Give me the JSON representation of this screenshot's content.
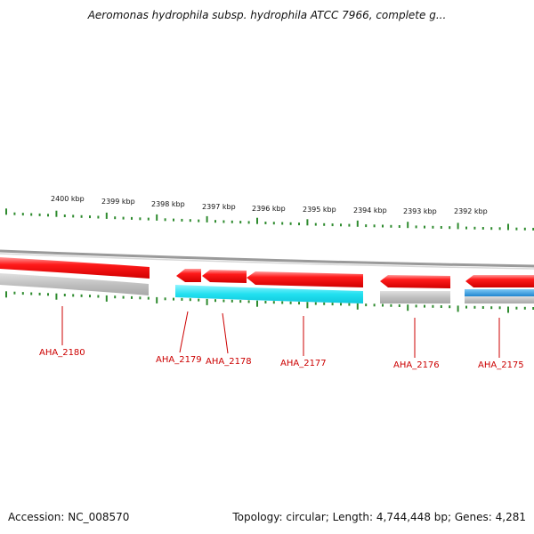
{
  "title": "Aeromonas hydrophila subsp. hydrophila ATCC 7966, complete g...",
  "footer": {
    "accession": "Accession: NC_008570",
    "topology": "Topology: circular; Length: 4,744,448 bp; Genes: 4,281"
  },
  "scale_labels": [
    "2400 kbp",
    "2399 kbp",
    "2398 kbp",
    "2397 kbp",
    "2396 kbp",
    "2395 kbp",
    "2394 kbp",
    "2393 kbp",
    "2392 kbp"
  ],
  "genes": [
    "AHA_2180",
    "AHA_2179",
    "AHA_2178",
    "AHA_2177",
    "AHA_2176",
    "AHA_2175"
  ],
  "colors": {
    "gene": "#ee1111",
    "gene_highlight": "#ff8888",
    "cyan_track": "#22e0f0",
    "blue_track": "#1f9ae0",
    "gray_track": "#b8b8b8",
    "backbone": "#8a8a8a",
    "tick": "#2e8b2e",
    "label": "#cc0000"
  }
}
